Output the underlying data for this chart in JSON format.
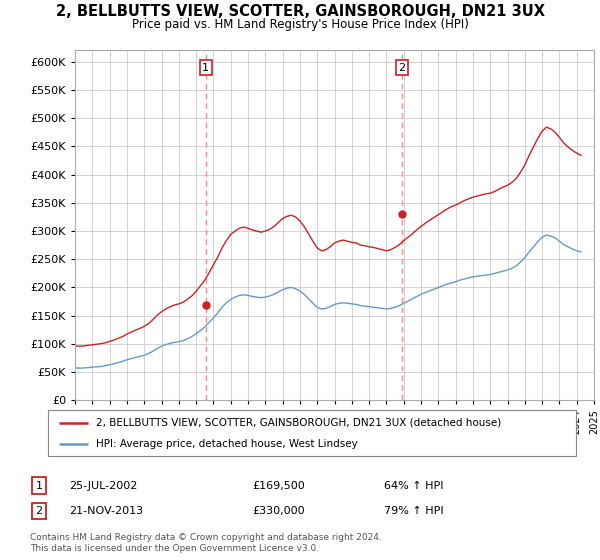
{
  "title": "2, BELLBUTTS VIEW, SCOTTER, GAINSBOROUGH, DN21 3UX",
  "subtitle": "Price paid vs. HM Land Registry's House Price Index (HPI)",
  "title_fontsize": 10.5,
  "subtitle_fontsize": 8.5,
  "background_color": "#ffffff",
  "grid_color": "#cccccc",
  "hpi_color": "#6699cc",
  "price_color": "#cc2222",
  "dashed_color": "#ff8888",
  "ylim": [
    0,
    620000
  ],
  "yticks": [
    0,
    50000,
    100000,
    150000,
    200000,
    250000,
    300000,
    350000,
    400000,
    450000,
    500000,
    550000,
    600000
  ],
  "sale1_date": 2002.56,
  "sale1_price": 169500,
  "sale1_label": "1",
  "sale2_date": 2013.9,
  "sale2_price": 330000,
  "sale2_label": "2",
  "legend_line1": "2, BELLBUTTS VIEW, SCOTTER, GAINSBOROUGH, DN21 3UX (detached house)",
  "legend_line2": "HPI: Average price, detached house, West Lindsey",
  "table_row1": [
    "1",
    "25-JUL-2002",
    "£169,500",
    "64% ↑ HPI"
  ],
  "table_row2": [
    "2",
    "21-NOV-2013",
    "£330,000",
    "79% ↑ HPI"
  ],
  "footer": "Contains HM Land Registry data © Crown copyright and database right 2024.\nThis data is licensed under the Open Government Licence v3.0.",
  "hpi_data_x": [
    1995.0,
    1995.25,
    1995.5,
    1995.75,
    1996.0,
    1996.25,
    1996.5,
    1996.75,
    1997.0,
    1997.25,
    1997.5,
    1997.75,
    1998.0,
    1998.25,
    1998.5,
    1998.75,
    1999.0,
    1999.25,
    1999.5,
    1999.75,
    2000.0,
    2000.25,
    2000.5,
    2000.75,
    2001.0,
    2001.25,
    2001.5,
    2001.75,
    2002.0,
    2002.25,
    2002.5,
    2002.75,
    2003.0,
    2003.25,
    2003.5,
    2003.75,
    2004.0,
    2004.25,
    2004.5,
    2004.75,
    2005.0,
    2005.25,
    2005.5,
    2005.75,
    2006.0,
    2006.25,
    2006.5,
    2006.75,
    2007.0,
    2007.25,
    2007.5,
    2007.75,
    2008.0,
    2008.25,
    2008.5,
    2008.75,
    2009.0,
    2009.25,
    2009.5,
    2009.75,
    2010.0,
    2010.25,
    2010.5,
    2010.75,
    2011.0,
    2011.25,
    2011.5,
    2011.75,
    2012.0,
    2012.25,
    2012.5,
    2012.75,
    2013.0,
    2013.25,
    2013.5,
    2013.75,
    2014.0,
    2014.25,
    2014.5,
    2014.75,
    2015.0,
    2015.25,
    2015.5,
    2015.75,
    2016.0,
    2016.25,
    2016.5,
    2016.75,
    2017.0,
    2017.25,
    2017.5,
    2017.75,
    2018.0,
    2018.25,
    2018.5,
    2018.75,
    2019.0,
    2019.25,
    2019.5,
    2019.75,
    2020.0,
    2020.25,
    2020.5,
    2020.75,
    2021.0,
    2021.25,
    2021.5,
    2021.75,
    2022.0,
    2022.25,
    2022.5,
    2022.75,
    2023.0,
    2023.25,
    2023.5,
    2023.75,
    2024.0,
    2024.25
  ],
  "hpi_data_y": [
    58000,
    57000,
    57500,
    58000,
    59000,
    59500,
    60000,
    61500,
    63000,
    65000,
    67000,
    69000,
    72000,
    74000,
    76000,
    78000,
    80000,
    83000,
    87000,
    92000,
    96000,
    99000,
    101000,
    103000,
    104000,
    106000,
    109000,
    113000,
    118000,
    124000,
    130000,
    138000,
    146000,
    155000,
    165000,
    173000,
    179000,
    183000,
    186000,
    187000,
    186000,
    184000,
    183000,
    182000,
    183000,
    185000,
    188000,
    192000,
    196000,
    199000,
    200000,
    198000,
    194000,
    188000,
    180000,
    172000,
    165000,
    162000,
    163000,
    166000,
    170000,
    172000,
    173000,
    172000,
    171000,
    170000,
    168000,
    167000,
    166000,
    165000,
    164000,
    163000,
    162000,
    163000,
    165000,
    168000,
    172000,
    176000,
    180000,
    184000,
    188000,
    191000,
    194000,
    197000,
    200000,
    203000,
    206000,
    208000,
    210000,
    213000,
    215000,
    217000,
    219000,
    220000,
    221000,
    222000,
    223000,
    225000,
    227000,
    229000,
    231000,
    234000,
    238000,
    245000,
    253000,
    263000,
    272000,
    281000,
    289000,
    293000,
    291000,
    288000,
    282000,
    276000,
    272000,
    268000,
    265000,
    263000
  ],
  "price_index_y": [
    97000,
    96000,
    96500,
    97500,
    98500,
    99500,
    100500,
    102000,
    104500,
    107000,
    110000,
    113000,
    117500,
    121000,
    124500,
    127500,
    131000,
    136000,
    143000,
    151000,
    157000,
    162000,
    166000,
    169000,
    171000,
    174000,
    179000,
    185000,
    193000,
    203000,
    213000,
    226000,
    240000,
    254000,
    270000,
    283000,
    294000,
    300000,
    305000,
    307000,
    305000,
    302000,
    300000,
    298000,
    300000,
    303000,
    308000,
    315000,
    322000,
    326000,
    328000,
    325000,
    318000,
    308000,
    295000,
    282000,
    270000,
    265000,
    267000,
    272000,
    279000,
    282000,
    284000,
    282000,
    280000,
    279000,
    275000,
    274000,
    272000,
    271000,
    269000,
    267000,
    265000,
    267000,
    271000,
    276000,
    283000,
    289000,
    295000,
    302000,
    308000,
    314000,
    319000,
    324000,
    329000,
    334000,
    339000,
    343000,
    346000,
    350000,
    354000,
    357000,
    360000,
    362000,
    364000,
    366000,
    367000,
    370000,
    374000,
    378000,
    381000,
    386000,
    393000,
    404000,
    417000,
    434000,
    449000,
    464000,
    477000,
    484000,
    481000,
    475000,
    466000,
    456000,
    449000,
    443000,
    438000,
    434000
  ]
}
